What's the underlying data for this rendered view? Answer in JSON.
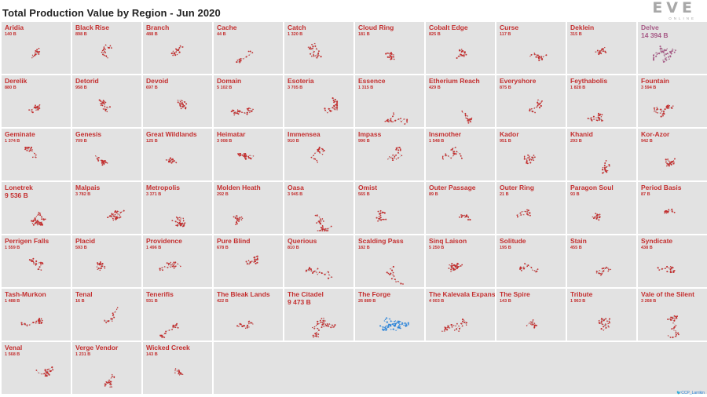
{
  "title": "Total Production Value by Region - Jun 2020",
  "logo": {
    "word": "EVE",
    "sub": "ONLINE"
  },
  "credit": "CCP_Larrikin",
  "colors": {
    "default": "#c42f2f",
    "highlight": "#2a83d8",
    "dim": "#a75a86"
  },
  "chart_data": {
    "type": "small-multiples",
    "title": "Total Production Value by Region - Jun 2020",
    "unit": "B",
    "regions": [
      {
        "name": "Aridia",
        "label": "140 B",
        "value": 140
      },
      {
        "name": "Black Rise",
        "label": "898 B",
        "value": 898
      },
      {
        "name": "Branch",
        "label": "488 B",
        "value": 488
      },
      {
        "name": "Cache",
        "label": "44 B",
        "value": 44
      },
      {
        "name": "Catch",
        "label": "1 320 B",
        "value": 1320
      },
      {
        "name": "Cloud Ring",
        "label": "181 B",
        "value": 181
      },
      {
        "name": "Cobalt Edge",
        "label": "825 B",
        "value": 825
      },
      {
        "name": "Curse",
        "label": "117 B",
        "value": 117
      },
      {
        "name": "Deklein",
        "label": "315 B",
        "value": 315
      },
      {
        "name": "Delve",
        "label": "14 394 B",
        "value": 14394,
        "style": "dim"
      },
      {
        "name": "Derelik",
        "label": "880 B",
        "value": 880
      },
      {
        "name": "Detorid",
        "label": "958 B",
        "value": 958
      },
      {
        "name": "Devoid",
        "label": "697 B",
        "value": 697
      },
      {
        "name": "Domain",
        "label": "5 102 B",
        "value": 5102
      },
      {
        "name": "Esoteria",
        "label": "3 705 B",
        "value": 3705
      },
      {
        "name": "Essence",
        "label": "1 315 B",
        "value": 1315
      },
      {
        "name": "Etherium Reach",
        "label": "429 B",
        "value": 429
      },
      {
        "name": "Everyshore",
        "label": "875 B",
        "value": 875
      },
      {
        "name": "Feythabolis",
        "label": "1 828 B",
        "value": 1828
      },
      {
        "name": "Fountain",
        "label": "3 594 B",
        "value": 3594
      },
      {
        "name": "Geminate",
        "label": "1 374 B",
        "value": 1374
      },
      {
        "name": "Genesis",
        "label": "709 B",
        "value": 709
      },
      {
        "name": "Great Wildlands",
        "label": "125 B",
        "value": 125
      },
      {
        "name": "Heimatar",
        "label": "3 008 B",
        "value": 3008
      },
      {
        "name": "Immensea",
        "label": "910 B",
        "value": 910
      },
      {
        "name": "Impass",
        "label": "990 B",
        "value": 990
      },
      {
        "name": "Insmother",
        "label": "1 548 B",
        "value": 1548
      },
      {
        "name": "Kador",
        "label": "951 B",
        "value": 951
      },
      {
        "name": "Khanid",
        "label": "293 B",
        "value": 293
      },
      {
        "name": "Kor-Azor",
        "label": "942 B",
        "value": 942
      },
      {
        "name": "Lonetrek",
        "label": "9 536 B",
        "value": 9536,
        "style": "big"
      },
      {
        "name": "Malpais",
        "label": "3 782 B",
        "value": 3782
      },
      {
        "name": "Metropolis",
        "label": "3 371 B",
        "value": 3371
      },
      {
        "name": "Molden Heath",
        "label": "292 B",
        "value": 292
      },
      {
        "name": "Oasa",
        "label": "3 945 B",
        "value": 3945
      },
      {
        "name": "Omist",
        "label": "565 B",
        "value": 565
      },
      {
        "name": "Outer Passage",
        "label": "89 B",
        "value": 89
      },
      {
        "name": "Outer Ring",
        "label": "21 B",
        "value": 21
      },
      {
        "name": "Paragon Soul",
        "label": "93 B",
        "value": 93
      },
      {
        "name": "Period Basis",
        "label": "87 B",
        "value": 87
      },
      {
        "name": "Perrigen Falls",
        "label": "1 559 B",
        "value": 1559
      },
      {
        "name": "Placid",
        "label": "593 B",
        "value": 593
      },
      {
        "name": "Providence",
        "label": "1 496 B",
        "value": 1496
      },
      {
        "name": "Pure Blind",
        "label": "678 B",
        "value": 678
      },
      {
        "name": "Querious",
        "label": "810 B",
        "value": 810
      },
      {
        "name": "Scalding Pass",
        "label": "182 B",
        "value": 182
      },
      {
        "name": "Sinq Laison",
        "label": "5 250 B",
        "value": 5250
      },
      {
        "name": "Solitude",
        "label": "195 B",
        "value": 195
      },
      {
        "name": "Stain",
        "label": "455 B",
        "value": 455
      },
      {
        "name": "Syndicate",
        "label": "438 B",
        "value": 438
      },
      {
        "name": "Tash-Murkon",
        "label": "1 488 B",
        "value": 1488
      },
      {
        "name": "Tenal",
        "label": "16 B",
        "value": 16
      },
      {
        "name": "Tenerifis",
        "label": "931 B",
        "value": 931
      },
      {
        "name": "The Bleak Lands",
        "label": "422 B",
        "value": 422
      },
      {
        "name": "The Citadel",
        "label": "9 473 B",
        "value": 9473,
        "style": "big"
      },
      {
        "name": "The Forge",
        "label": "26 889 B",
        "value": 26889,
        "style": "highlight"
      },
      {
        "name": "The Kalevala Expanse",
        "label": "4 003 B",
        "value": 4003
      },
      {
        "name": "The Spire",
        "label": "143 B",
        "value": 143
      },
      {
        "name": "Tribute",
        "label": "1 963 B",
        "value": 1963
      },
      {
        "name": "Vale of the Silent",
        "label": "3 268 B",
        "value": 3268
      },
      {
        "name": "Venal",
        "label": "1 568 B",
        "value": 1568
      },
      {
        "name": "Verge Vendor",
        "label": "1 231 B",
        "value": 1231
      },
      {
        "name": "Wicked Creek",
        "label": "143 B",
        "value": 143
      }
    ]
  }
}
